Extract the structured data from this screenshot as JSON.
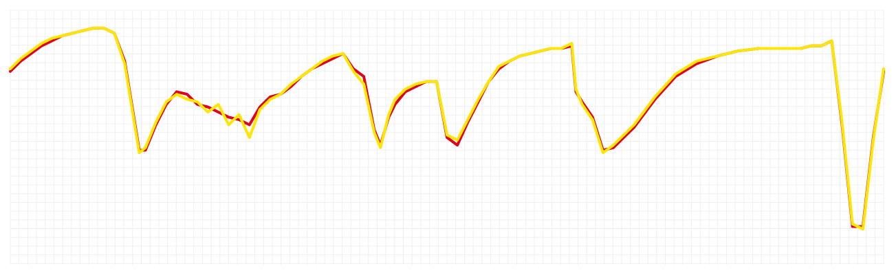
{
  "chart_data": {
    "type": "line",
    "xlim": [
      0,
      420
    ],
    "ylim": [
      0,
      100
    ],
    "grid": true,
    "legend": "none",
    "series": [
      {
        "color": "#e0001f",
        "x": [
          0,
          5,
          10,
          15,
          20,
          25,
          30,
          35,
          40,
          45,
          50,
          55,
          60,
          62,
          65,
          70,
          75,
          80,
          85,
          90,
          95,
          100,
          105,
          110,
          115,
          120,
          125,
          130,
          135,
          140,
          145,
          150,
          155,
          160,
          165,
          170,
          175,
          178,
          182,
          185,
          190,
          195,
          200,
          205,
          210,
          215,
          220,
          225,
          230,
          235,
          240,
          245,
          250,
          255,
          260,
          265,
          270,
          272,
          275,
          280,
          285,
          290,
          300,
          310,
          320,
          330,
          340,
          350,
          360,
          370,
          380,
          385,
          390,
          395,
          400,
          405,
          410,
          415,
          420
        ],
        "values": [
          76,
          80,
          83,
          86,
          88,
          90,
          91,
          92,
          93,
          93,
          91,
          80,
          55,
          45,
          45,
          55,
          63,
          68,
          67,
          63,
          62,
          60,
          58,
          57,
          55,
          62,
          66,
          67,
          70,
          74,
          77,
          79,
          81,
          83,
          77,
          74,
          53,
          47,
          58,
          63,
          68,
          70,
          72,
          72,
          50,
          47,
          56,
          64,
          72,
          77,
          80,
          82,
          83,
          84,
          85,
          85,
          86,
          68,
          64,
          58,
          45,
          46,
          54,
          65,
          74,
          79,
          82,
          84,
          85,
          85,
          85,
          86,
          86,
          88,
          55,
          15,
          15,
          50,
          76
        ]
      },
      {
        "color": "#ffe600",
        "x": [
          0,
          5,
          10,
          15,
          20,
          25,
          30,
          35,
          40,
          45,
          50,
          55,
          60,
          62,
          65,
          70,
          75,
          80,
          85,
          90,
          95,
          100,
          105,
          110,
          115,
          120,
          125,
          130,
          135,
          140,
          145,
          150,
          155,
          160,
          165,
          170,
          175,
          178,
          182,
          185,
          190,
          195,
          200,
          205,
          210,
          215,
          220,
          225,
          230,
          235,
          240,
          245,
          250,
          255,
          260,
          265,
          270,
          272,
          275,
          280,
          285,
          290,
          300,
          310,
          320,
          330,
          340,
          350,
          360,
          370,
          380,
          385,
          390,
          395,
          400,
          405,
          410,
          415,
          420
        ],
        "values": [
          77,
          81,
          84,
          87,
          89,
          90,
          91,
          92,
          93,
          93,
          91,
          79,
          54,
          44,
          46,
          56,
          64,
          67,
          65,
          64,
          60,
          63,
          55,
          59,
          50,
          61,
          65,
          67,
          71,
          74,
          77,
          80,
          82,
          83,
          76,
          71,
          52,
          46,
          59,
          65,
          69,
          71,
          72,
          72,
          51,
          49,
          57,
          65,
          72,
          78,
          80,
          82,
          83,
          84,
          85,
          85,
          87,
          69,
          63,
          57,
          44,
          47,
          55,
          66,
          75,
          80,
          82,
          84,
          85,
          85,
          85,
          86,
          86,
          88,
          56,
          16,
          14,
          49,
          77
        ]
      }
    ]
  }
}
